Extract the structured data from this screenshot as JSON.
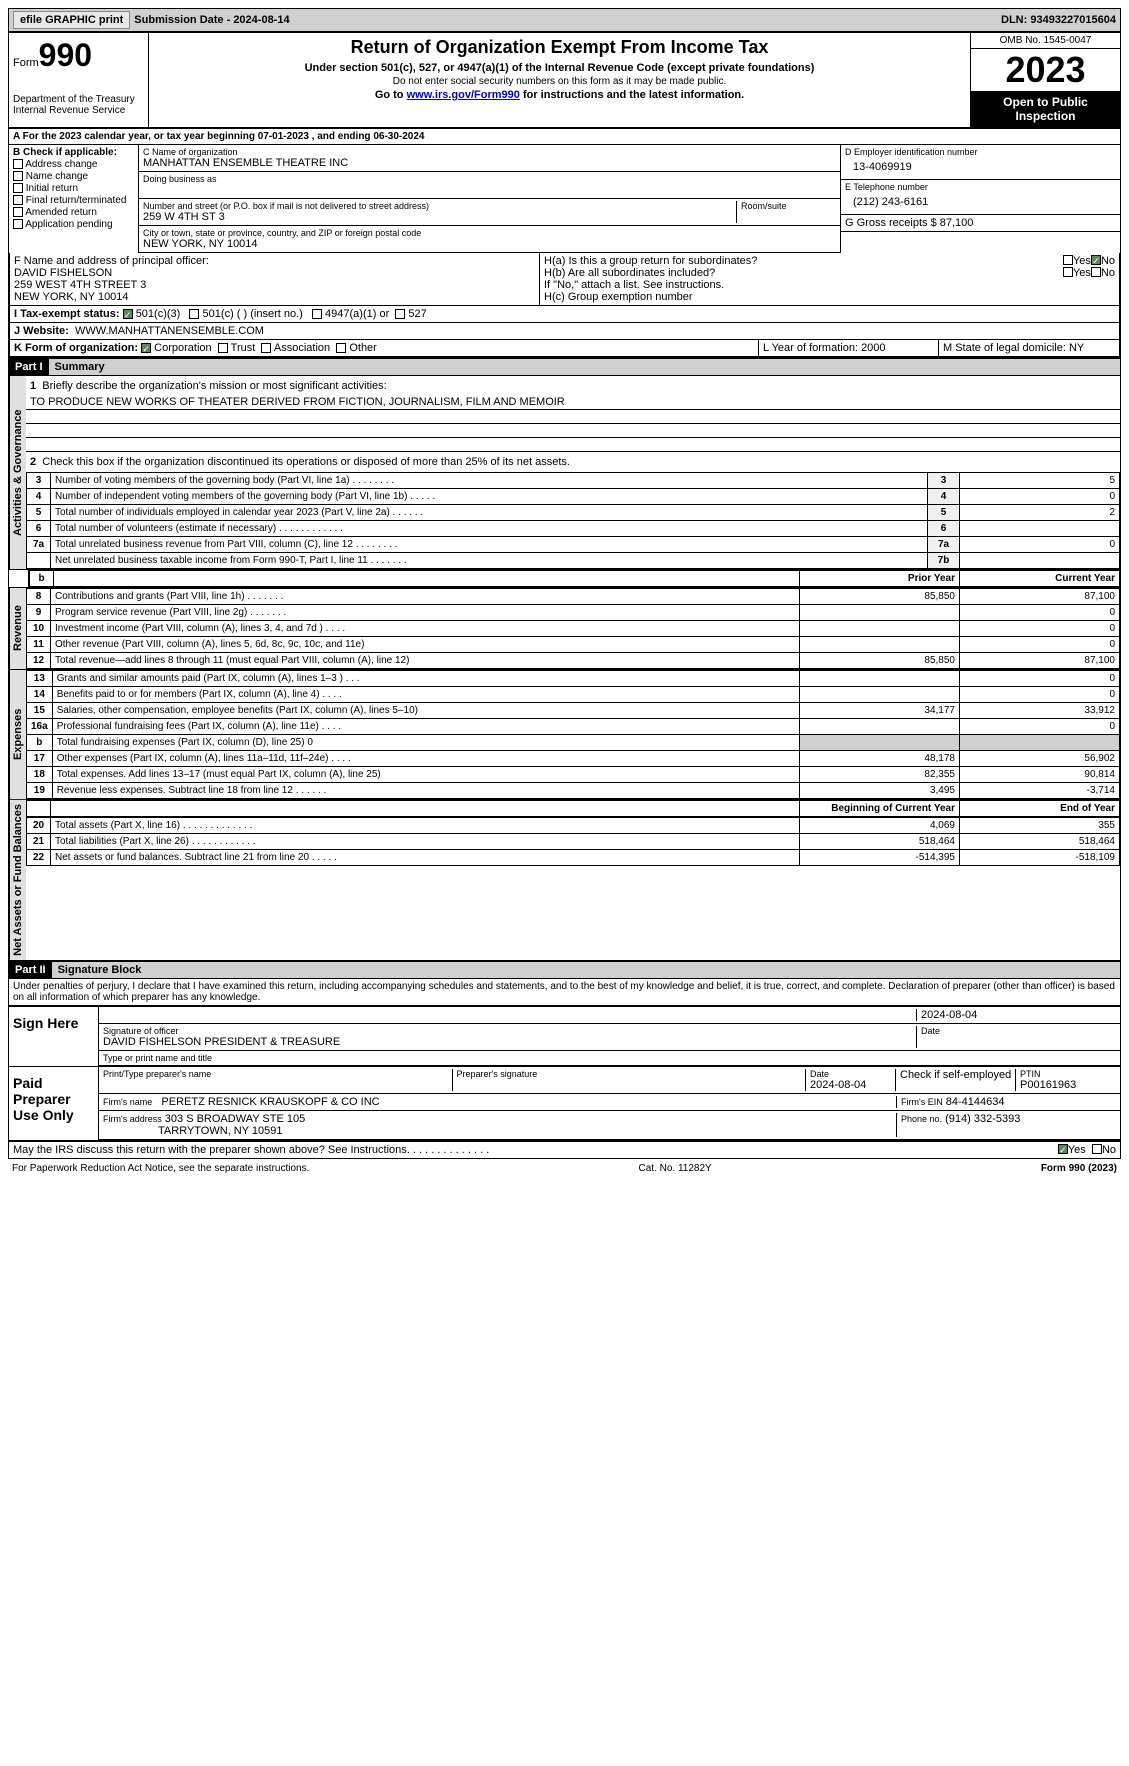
{
  "topbar": {
    "efile": "efile GRAPHIC print",
    "submission": "Submission Date - 2024-08-14",
    "dln": "DLN: 93493227015604"
  },
  "header": {
    "form_word": "Form",
    "form_num": "990",
    "dept": "Department of the Treasury\nInternal Revenue Service",
    "title": "Return of Organization Exempt From Income Tax",
    "sub1": "Under section 501(c), 527, or 4947(a)(1) of the Internal Revenue Code (except private foundations)",
    "sub2": "Do not enter social security numbers on this form as it may be made public.",
    "sub3_pre": "Go to ",
    "sub3_link": "www.irs.gov/Form990",
    "sub3_post": " for instructions and the latest information.",
    "omb": "OMB No. 1545-0047",
    "year": "2023",
    "open": "Open to Public Inspection"
  },
  "tax_year": "A For the 2023 calendar year, or tax year beginning 07-01-2023   , and ending 06-30-2024",
  "section_b": {
    "title": "B Check if applicable:",
    "items": [
      "Address change",
      "Name change",
      "Initial return",
      "Final return/terminated",
      "Amended return",
      "Application pending"
    ]
  },
  "section_c": {
    "name_label": "C Name of organization",
    "name": "MANHATTAN ENSEMBLE THEATRE INC",
    "dba_label": "Doing business as",
    "dba": "",
    "addr_label": "Number and street (or P.O. box if mail is not delivered to street address)",
    "addr": "259 W 4TH ST 3",
    "room_label": "Room/suite",
    "city_label": "City or town, state or province, country, and ZIP or foreign postal code",
    "city": "NEW YORK, NY  10014"
  },
  "section_d": {
    "label": "D Employer identification number",
    "value": "13-4069919"
  },
  "section_e": {
    "label": "E Telephone number",
    "value": "(212) 243-6161"
  },
  "section_g": {
    "label": "G Gross receipts $",
    "value": "87,100"
  },
  "section_f": {
    "label": "F  Name and address of principal officer:",
    "name": "DAVID FISHELSON",
    "addr1": "259 WEST 4TH STREET 3",
    "addr2": "NEW YORK, NY  10014"
  },
  "section_h": {
    "a_label": "H(a)  Is this a group return for subordinates?",
    "b_label": "H(b)  Are all subordinates included?",
    "b_note": "If \"No,\" attach a list. See instructions.",
    "c_label": "H(c)  Group exemption number",
    "yes": "Yes",
    "no": "No"
  },
  "section_i": {
    "label": "I    Tax-exempt status:",
    "opts": [
      "501(c)(3)",
      "501(c) (  ) (insert no.)",
      "4947(a)(1) or",
      "527"
    ]
  },
  "section_j": {
    "label": "J    Website:",
    "value": "WWW.MANHATTANENSEMBLE.COM"
  },
  "section_k": {
    "label": "K Form of organization:",
    "opts": [
      "Corporation",
      "Trust",
      "Association",
      "Other"
    ]
  },
  "section_l": {
    "label": "L Year of formation:",
    "value": "2000"
  },
  "section_m": {
    "label": "M State of legal domicile:",
    "value": "NY"
  },
  "part1": {
    "header": "Part I",
    "title": "Summary",
    "line1_label": "Briefly describe the organization's mission or most significant activities:",
    "line1_value": "TO PRODUCE NEW WORKS OF THEATER DERIVED FROM FICTION, JOURNALISM, FILM AND MEMOIR",
    "line2": "Check this box      if the organization discontinued its operations or disposed of more than 25% of its net assets.",
    "vert_gov": "Activities & Governance",
    "vert_rev": "Revenue",
    "vert_exp": "Expenses",
    "vert_net": "Net Assets or Fund Balances",
    "prior_year": "Prior Year",
    "current_year": "Current Year",
    "begin_year": "Beginning of Current Year",
    "end_year": "End of Year",
    "rows_gov": [
      {
        "n": "3",
        "t": "Number of voting members of the governing body (Part VI, line 1a)   .    .    .    .    .    .    .    .",
        "r": "3",
        "v": "5"
      },
      {
        "n": "4",
        "t": "Number of independent voting members of the governing body (Part VI, line 1b)   .    .    .    .    .",
        "r": "4",
        "v": "0"
      },
      {
        "n": "5",
        "t": "Total number of individuals employed in calendar year 2023 (Part V, line 2a)   .    .    .    .    .    .",
        "r": "5",
        "v": "2"
      },
      {
        "n": "6",
        "t": "Total number of volunteers (estimate if necessary)   .    .    .    .    .    .    .    .    .    .    .    .",
        "r": "6",
        "v": ""
      },
      {
        "n": "7a",
        "t": "Total unrelated business revenue from Part VIII, column (C), line 12   .    .    .    .    .    .    .    .",
        "r": "7a",
        "v": "0"
      },
      {
        "n": "",
        "t": "Net unrelated business taxable income from Form 990-T, Part I, line 11   .    .    .    .    .    .    .",
        "r": "7b",
        "v": ""
      }
    ],
    "rows_rev": [
      {
        "n": "8",
        "t": "Contributions and grants (Part VIII, line 1h)   .    .    .    .    .    .    .",
        "p": "85,850",
        "c": "87,100"
      },
      {
        "n": "9",
        "t": "Program service revenue (Part VIII, line 2g)   .    .    .    .    .    .    .",
        "p": "",
        "c": "0"
      },
      {
        "n": "10",
        "t": "Investment income (Part VIII, column (A), lines 3, 4, and 7d )   .    .    .    .",
        "p": "",
        "c": "0"
      },
      {
        "n": "11",
        "t": "Other revenue (Part VIII, column (A), lines 5, 6d, 8c, 9c, 10c, and 11e)",
        "p": "",
        "c": "0"
      },
      {
        "n": "12",
        "t": "Total revenue—add lines 8 through 11 (must equal Part VIII, column (A), line 12)",
        "p": "85,850",
        "c": "87,100"
      }
    ],
    "rows_exp": [
      {
        "n": "13",
        "t": "Grants and similar amounts paid (Part IX, column (A), lines 1–3 )   .    .    .",
        "p": "",
        "c": "0"
      },
      {
        "n": "14",
        "t": "Benefits paid to or for members (Part IX, column (A), line 4)   .    .    .    .",
        "p": "",
        "c": "0"
      },
      {
        "n": "15",
        "t": "Salaries, other compensation, employee benefits (Part IX, column (A), lines 5–10)",
        "p": "34,177",
        "c": "33,912"
      },
      {
        "n": "16a",
        "t": "Professional fundraising fees (Part IX, column (A), line 11e)   .    .    .    .",
        "p": "",
        "c": "0"
      },
      {
        "n": "b",
        "t": "Total fundraising expenses (Part IX, column (D), line 25) 0",
        "p": "SHADED",
        "c": "SHADED"
      },
      {
        "n": "17",
        "t": "Other expenses (Part IX, column (A), lines 11a–11d, 11f–24e)   .    .    .    .",
        "p": "48,178",
        "c": "56,902"
      },
      {
        "n": "18",
        "t": "Total expenses. Add lines 13–17 (must equal Part IX, column (A), line 25)",
        "p": "82,355",
        "c": "90,814"
      },
      {
        "n": "19",
        "t": "Revenue less expenses. Subtract line 18 from line 12   .    .    .    .    .    .",
        "p": "3,495",
        "c": "-3,714"
      }
    ],
    "rows_net": [
      {
        "n": "20",
        "t": "Total assets (Part X, line 16)   .    .    .    .    .    .    .    .    .    .    .    .    .",
        "p": "4,069",
        "c": "355"
      },
      {
        "n": "21",
        "t": "Total liabilities (Part X, line 26)   .    .    .    .    .    .    .    .    .    .    .    .",
        "p": "518,464",
        "c": "518,464"
      },
      {
        "n": "22",
        "t": "Net assets or fund balances. Subtract line 21 from line 20   .    .    .    .    .",
        "p": "-514,395",
        "c": "-518,109"
      }
    ]
  },
  "part2": {
    "header": "Part II",
    "title": "Signature Block",
    "decl": "Under penalties of perjury, I declare that I have examined this return, including accompanying schedules and statements, and to the best of my knowledge and belief, it is true, correct, and complete. Declaration of preparer (other than officer) is based on all information of which preparer has any knowledge.",
    "sign_here": "Sign Here",
    "sig_officer_label": "Signature of officer",
    "sig_officer": "DAVID FISHELSON  PRESIDENT & TREASURE",
    "sig_date_label": "Date",
    "sig_date": "2024-08-04",
    "type_label": "Type or print name and title",
    "paid": "Paid Preparer Use Only",
    "prep_name_label": "Print/Type preparer's name",
    "prep_sig_label": "Preparer's signature",
    "prep_date_label": "Date",
    "prep_date": "2024-08-04",
    "prep_check": "Check      if self-employed",
    "ptin_label": "PTIN",
    "ptin": "P00161963",
    "firm_name_label": "Firm's name",
    "firm_name": "PERETZ RESNICK KRAUSKOPF & CO INC",
    "firm_ein_label": "Firm's EIN",
    "firm_ein": "84-4144634",
    "firm_addr_label": "Firm's address",
    "firm_addr1": "303 S BROADWAY STE 105",
    "firm_addr2": "TARRYTOWN, NY  10591",
    "phone_label": "Phone no.",
    "phone": "(914) 332-5393",
    "discuss": "May the IRS discuss this return with the preparer shown above? See Instructions.    .    .    .    .    .    .    .    .    .    .    .    .    .",
    "yes": "Yes",
    "no": "No"
  },
  "footer": {
    "left": "For Paperwork Reduction Act Notice, see the separate instructions.",
    "center": "Cat. No. 11282Y",
    "right": "Form 990 (2023)"
  }
}
